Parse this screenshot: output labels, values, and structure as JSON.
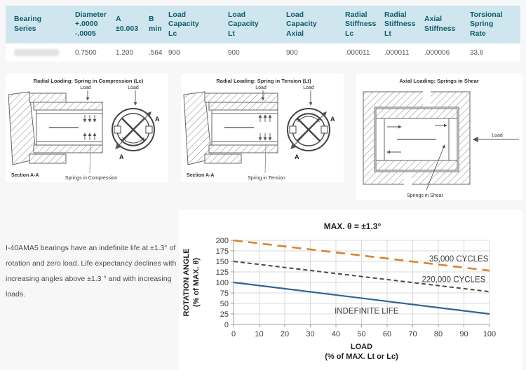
{
  "table": {
    "headers": [
      "Bearing Series",
      "Diameter\n+.0000\n-.0005",
      "A\n±0.003",
      "B\nmin",
      "Load Capacity\nLc",
      "Load Capacity\nLt",
      "Load Capacity\nAxial",
      "Radial\nStiffness\nLc",
      "Radial\nStiffness\nLt",
      "Axial\nStiffness",
      "Torsional\nSpring\nRate"
    ],
    "row": [
      "",
      "0.7500",
      "1.200",
      ".564",
      "900",
      "900",
      "900",
      ".000011",
      ".000011",
      ".000006",
      "33.6"
    ]
  },
  "colors": {
    "table_header_bg": "#cfe6ef",
    "table_header_text": "#0e5b6b",
    "page_bg": "#f7f7f8"
  },
  "diagrams": {
    "compression": {
      "title": "Radial Loading: Spring in Compression (Lc)",
      "load_label": "Load",
      "section_label": "Section A-A",
      "caption": "Springs in Compression",
      "marker_a": "A"
    },
    "tension": {
      "title": "Radial Loading: Spring in Tension (Lt)",
      "load_label": "Load",
      "section_label": "Section A-A",
      "caption": "Spring in Tension",
      "marker_a": "A"
    },
    "shear": {
      "title": "Axial Loading: Springs in Shear",
      "load_label": "Load",
      "caption": "Springs in Shear"
    }
  },
  "note": "I-40AMA5  bearings have an indefinite life at ±1.3° of rotation and zero load.  Life expectancy declines with increasing angles above ±1.3 ° and with increasing loads.",
  "chart_data": {
    "type": "line",
    "title": "MAX. θ = ±1.3°",
    "xlabel": "LOAD",
    "xlabel_sub": "(% of MAX. Lt or Lc)",
    "ylabel": "ROTATION ANGLE",
    "ylabel_sub": "(% of MAX. θ)",
    "xlim": [
      0,
      100
    ],
    "ylim": [
      0,
      200
    ],
    "xticks": [
      0,
      10,
      20,
      30,
      40,
      50,
      60,
      70,
      80,
      90,
      100
    ],
    "yticks": [
      0,
      25,
      50,
      75,
      100,
      125,
      150,
      175,
      200
    ],
    "grid": true,
    "legend_position": "inline-labels",
    "series": [
      {
        "name": "35,000 CYCLES",
        "x": [
          0,
          100
        ],
        "y": [
          200,
          128
        ],
        "color": "#d8862d",
        "dash": "13 8",
        "width": 2.6,
        "label_x": 88,
        "label_y": 150
      },
      {
        "name": "220,000 CYCLES",
        "x": [
          0,
          100
        ],
        "y": [
          150,
          78
        ],
        "color": "#4b4c35",
        "dash": "6 4",
        "width": 2,
        "label_x": 86,
        "label_y": 101
      },
      {
        "name": "INDEFINITE LIFE",
        "x": [
          0,
          100
        ],
        "y": [
          100,
          25
        ],
        "color": "#2f6496",
        "dash": "",
        "width": 2.2,
        "label_x": 52,
        "label_y": 26
      }
    ]
  }
}
